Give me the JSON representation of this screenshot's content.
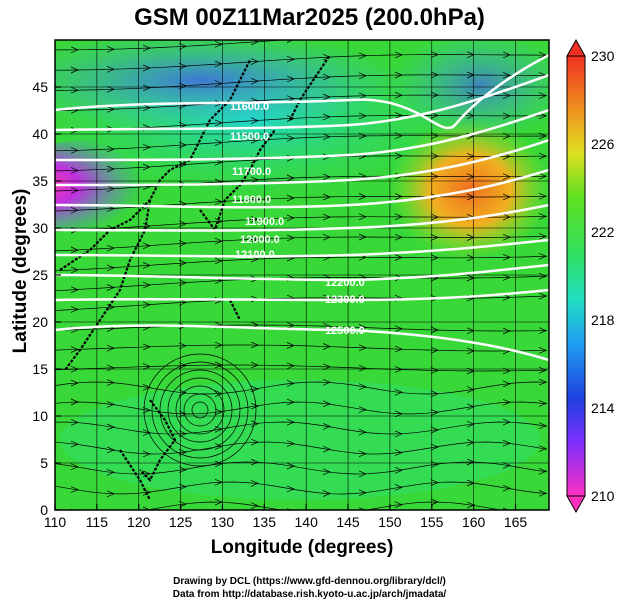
{
  "title": "GSM 00Z11Mar2025 (200.0hPa)",
  "xlabel": "Longitude (degrees)",
  "ylabel": "Latitude  (degrees)",
  "footer": {
    "line1": "Drawing by DCL (https://www.gfd-dennou.org/library/dcl/)",
    "line2": "Data from http://database.rish.kyoto-u.ac.jp/arch/jmadata/"
  },
  "map": {
    "lon_range": [
      110,
      169
    ],
    "lat_range": [
      0,
      50
    ],
    "lon_ticks": [
      "110",
      "115",
      "120",
      "125",
      "130",
      "135",
      "140",
      "145",
      "150",
      "155",
      "160",
      "165"
    ],
    "lat_ticks": [
      "0",
      "5",
      "10",
      "15",
      "20",
      "25",
      "30",
      "35",
      "40",
      "45"
    ],
    "contour_labels": [
      "11600.0",
      "11500.0",
      "11700.0",
      "11800.0",
      "11900.0",
      "12000.0",
      "12100.0",
      "12200.0",
      "12300.0",
      "12500.0"
    ],
    "colorbar": {
      "min": 210,
      "max": 230,
      "labels": [
        "230",
        "226",
        "222",
        "218",
        "214",
        "210"
      ]
    },
    "colors": {
      "warm": "#f07820",
      "cool": "#3080f0",
      "green": "#30d030",
      "magenta": "#e020c0"
    }
  }
}
